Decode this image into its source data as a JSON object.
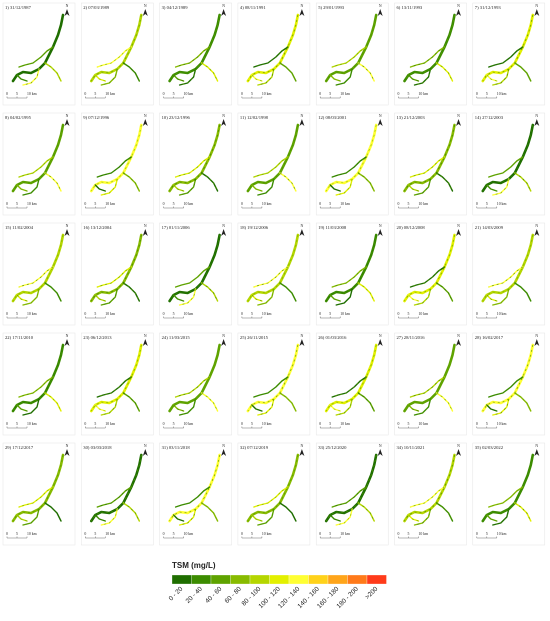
{
  "panels": [
    "1) 31/12/1987",
    "2) 07/03/1989",
    "3) 04/12/1989",
    "4) 08/11/1991",
    "5) 29/01/1993",
    "6) 13/11/1993",
    "7) 31/12/1993",
    "8) 04/02/1995",
    "9) 07/12/1996",
    "10) 23/12/1996",
    "11) 12/02/1998",
    "12) 08/03/2001",
    "13) 21/12/2003",
    "14) 27/12/2003",
    "15) 11/02/2004",
    "16) 13/12/2004",
    "17) 01/11/2006",
    "18) 19/12/2006",
    "19) 11/03/2008",
    "20) 08/12/2008",
    "21) 14/03/2009",
    "22) 17/11/2010",
    "23) 06/12/2013",
    "24) 11/03/2015",
    "25) 26/11/2015",
    "26) 01/03/2016",
    "27) 28/11/2016",
    "28) 16/02/2017",
    "29) 17/12/2017",
    "30) 03/03/2018",
    "31) 03/11/2018",
    "32) 07/12/2019",
    "33) 25/12/2020",
    "34) 10/11/2021",
    "35) 02/03/2022"
  ],
  "north": "N",
  "scale_labels": [
    "0",
    "5",
    "10 km"
  ],
  "legend": {
    "title": "TSM (mg/L)",
    "classes": [
      {
        "label": "0 - 20",
        "color": "#1f6e00"
      },
      {
        "label": "20 - 40",
        "color": "#3c8c00"
      },
      {
        "label": "40 - 60",
        "color": "#5fa300"
      },
      {
        "label": "60 - 80",
        "color": "#88bb00"
      },
      {
        "label": "80 - 100",
        "color": "#b5d600"
      },
      {
        "label": "100 - 120",
        "color": "#e3f000"
      },
      {
        "label": "120 - 140",
        "color": "#ffff33"
      },
      {
        "label": "140 - 160",
        "color": "#ffd21a"
      },
      {
        "label": "160 - 180",
        "color": "#ffa51a"
      },
      {
        "label": "180 - 200",
        "color": "#ff7a1a"
      },
      {
        "label": ">200",
        "color": "#ff3b1a"
      }
    ]
  }
}
